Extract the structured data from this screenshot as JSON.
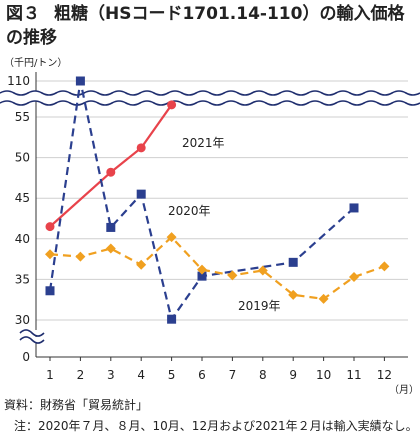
{
  "header": {
    "figure_label": "図３",
    "title_line1": "粗糖（HSコード1701.14-110）の輸入価格",
    "title_line2": "の推移"
  },
  "chart_data": {
    "type": "line",
    "unit_label": "（千円/トン）",
    "x_axis_unit": "（月）",
    "categories": [
      "1",
      "2",
      "3",
      "4",
      "5",
      "6",
      "7",
      "8",
      "9",
      "10",
      "11",
      "12"
    ],
    "y_ticks": [
      0,
      30,
      35,
      40,
      45,
      50,
      55,
      110
    ],
    "y_axis_break": {
      "from": 0,
      "to": 30
    },
    "upper_break": {
      "from": 56,
      "to": 110
    },
    "series": [
      {
        "name": "2021年",
        "color": "#e8434b",
        "dash": "solid",
        "marker": "circle",
        "values": [
          41.5,
          null,
          48.2,
          51.2,
          56.5,
          null,
          null,
          null,
          null,
          null,
          null,
          null
        ]
      },
      {
        "name": "2020年",
        "color": "#2b3f8f",
        "dash": "dashed",
        "marker": "square",
        "values": [
          33.6,
          110,
          41.4,
          45.5,
          30.1,
          35.4,
          null,
          null,
          37.1,
          null,
          43.8,
          null
        ]
      },
      {
        "name": "2019年",
        "color": "#f0a020",
        "dash": "dashed",
        "marker": "diamond",
        "values": [
          38.1,
          37.8,
          38.8,
          36.8,
          40.2,
          36.2,
          35.5,
          36.1,
          33.1,
          32.6,
          35.3,
          36.6
        ]
      }
    ]
  },
  "footer": {
    "source": "資料：財務省「貿易統計」",
    "note": "注：2020年７月、８月、10月、12月および2021年２月は輸入実績なし。"
  }
}
